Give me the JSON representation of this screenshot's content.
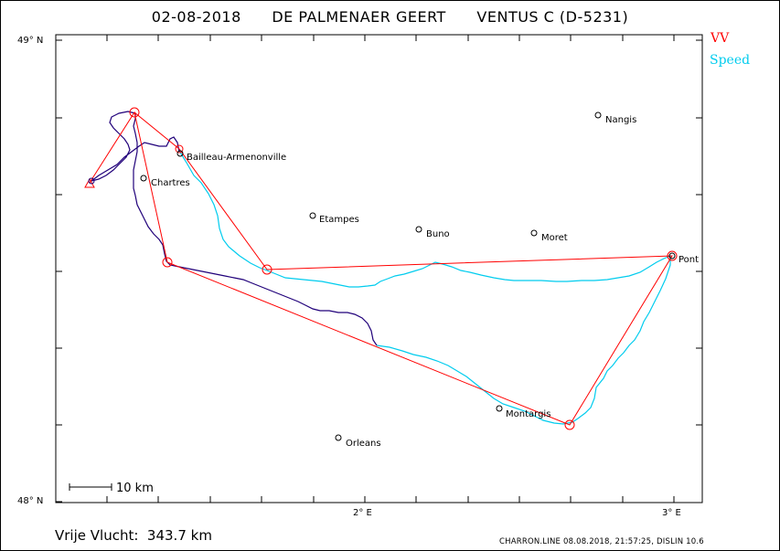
{
  "header": {
    "date": "02-08-2018",
    "pilot": "DE PALMENAER GEERT",
    "glider": "VENTUS C (D-5231)"
  },
  "legend": {
    "vv": "VV",
    "speed": "Speed",
    "vv_color": "#ff0000",
    "speed_color": "#00ccee"
  },
  "axes": {
    "y_top": "49° N",
    "y_bottom": "48° N",
    "x_2e": "2° E",
    "x_3e": "3° E"
  },
  "scale_bar": {
    "label": "10 km"
  },
  "cities": [
    {
      "name": "Nangis"
    },
    {
      "name": "Bailleau-Armenonville"
    },
    {
      "name": "Chartres"
    },
    {
      "name": "Etampes"
    },
    {
      "name": "Buno"
    },
    {
      "name": "Moret"
    },
    {
      "name": "Pont"
    },
    {
      "name": "Montargis"
    },
    {
      "name": "Orleans"
    }
  ],
  "summary": {
    "distance_text": "Vrije Vlucht:  343.7 km"
  },
  "footer": {
    "text": "CHARRON.LINE 08.08.2018, 21:57:25, DISLIN 10.6"
  },
  "colors": {
    "track_dark": "#20007a",
    "track_speed": "#00ccee",
    "task_line": "#ff0000"
  }
}
